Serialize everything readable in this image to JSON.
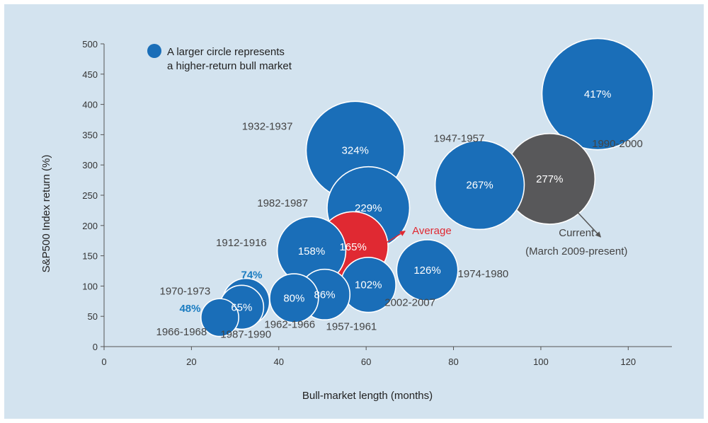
{
  "chart_data": {
    "type": "scatter",
    "xlabel": "Bull-market length (months)",
    "ylabel": "S&P500 Index return (%)",
    "xlim": [
      0,
      130
    ],
    "ylim": [
      0,
      500
    ],
    "xticks": [
      0,
      20,
      40,
      60,
      80,
      100,
      120
    ],
    "yticks": [
      0,
      50,
      100,
      150,
      200,
      250,
      300,
      350,
      400,
      450,
      500
    ],
    "grid": false,
    "legend": {
      "placement": "top-left",
      "line1": "A larger circle represents",
      "line2": "a higher-return bull market",
      "color": "#1a6eb8"
    },
    "colors": {
      "bubble": "#1a6eb8",
      "average": "#e02932",
      "current": "#58585a",
      "background": "#d3e3ef",
      "small_label": "#1a7cc1"
    },
    "points": [
      {
        "period": "1966-1968",
        "x": 26.5,
        "y": 48,
        "return_label": "48%",
        "label_outside": true
      },
      {
        "period": "1970-1973",
        "x": 32.5,
        "y": 74,
        "return_label": "74%",
        "label_outside": true
      },
      {
        "period": "1987-1990",
        "x": 31.5,
        "y": 65,
        "return_label": "65%"
      },
      {
        "period": "1962-1966",
        "x": 43.5,
        "y": 80,
        "return_label": "80%"
      },
      {
        "period": "1957-1961",
        "x": 50.5,
        "y": 86,
        "return_label": "86%"
      },
      {
        "period": "2002-2007",
        "x": 60.5,
        "y": 102,
        "return_label": "102%"
      },
      {
        "period": "1912-1916",
        "x": 47.5,
        "y": 158,
        "return_label": "158%"
      },
      {
        "period": "Average",
        "x": 57,
        "y": 165,
        "return_label": "165%",
        "kind": "average"
      },
      {
        "period": "1982-1987",
        "x": 60.5,
        "y": 229,
        "return_label": "229%"
      },
      {
        "period": "1932-1937",
        "x": 57.5,
        "y": 324,
        "return_label": "324%"
      },
      {
        "period": "1974-1980",
        "x": 74,
        "y": 126,
        "return_label": "126%"
      },
      {
        "period": "1947-1957",
        "x": 86,
        "y": 267,
        "return_label": "267%"
      },
      {
        "period": "Current",
        "sublabel": "(March 2009-present)",
        "x": 102,
        "y": 277,
        "return_label": "277%",
        "kind": "current"
      },
      {
        "period": "1990-2000",
        "x": 113,
        "y": 417,
        "return_label": "417%"
      }
    ]
  }
}
